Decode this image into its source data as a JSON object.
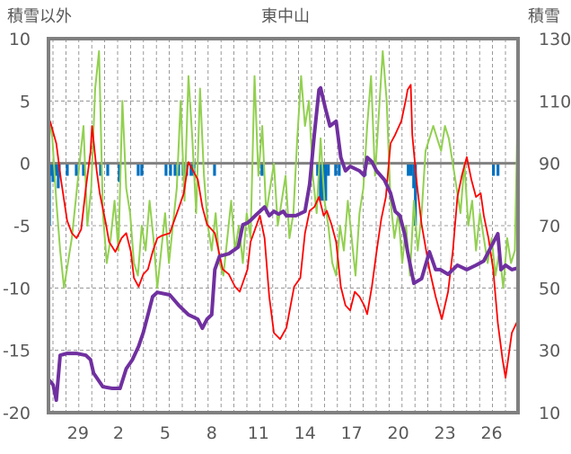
{
  "chart_data": {
    "type": "line",
    "title": "東中山",
    "ylabel_left": "積雪以外",
    "ylabel_right": "積雪",
    "ylim_left": [
      -20,
      10
    ],
    "ylim_right": [
      10,
      130
    ],
    "xlim": [
      0,
      30.2
    ],
    "left_ticks": [
      10,
      5,
      0,
      -5,
      -10,
      -15,
      -20
    ],
    "right_ticks": [
      130,
      110,
      90,
      70,
      50,
      30,
      10
    ],
    "x_ticks": [
      {
        "x": 1.9,
        "label": "29"
      },
      {
        "x": 4.5,
        "label": "2"
      },
      {
        "x": 7.5,
        "label": "5"
      },
      {
        "x": 10.5,
        "label": "8"
      },
      {
        "x": 13.5,
        "label": "11"
      },
      {
        "x": 16.5,
        "label": "14"
      },
      {
        "x": 19.5,
        "label": "17"
      },
      {
        "x": 22.5,
        "label": "20"
      },
      {
        "x": 25.5,
        "label": "23"
      },
      {
        "x": 28.5,
        "label": "26"
      }
    ],
    "grid": true,
    "colors": {
      "red": "#ff0000",
      "green": "#92d050",
      "purple": "#7030a0",
      "blue": "#0070c0",
      "frame": "#808080"
    },
    "series": [
      {
        "name": "red",
        "axis": "left",
        "x": [
          0.1,
          0.5,
          0.8,
          1.2,
          1.5,
          1.8,
          2.1,
          2.4,
          2.7,
          2.8,
          3.1,
          3.3,
          3.7,
          3.9,
          4.3,
          4.7,
          5.0,
          5.3,
          5.5,
          5.8,
          6.1,
          6.4,
          6.7,
          7.0,
          7.3,
          7.8,
          8.4,
          8.7,
          9.0,
          9.3,
          9.6,
          9.9,
          10.2,
          10.7,
          11.2,
          11.6,
          12.0,
          12.3,
          12.8,
          13.0,
          13.6,
          13.9,
          14.2,
          14.5,
          14.9,
          15.3,
          15.8,
          16.2,
          16.5,
          16.8,
          17.1,
          17.4,
          17.7,
          17.9,
          18.2,
          18.5,
          18.8,
          19.1,
          19.4,
          19.7,
          20.0,
          20.3,
          20.5,
          20.8,
          21.1,
          21.4,
          21.7,
          22.0,
          22.3,
          22.7,
          23.0,
          23.1,
          23.3,
          23.4,
          23.7,
          24.0,
          24.5,
          24.9,
          25.3,
          25.7,
          26.0,
          26.3,
          26.6,
          26.9,
          27.2,
          27.5,
          27.8,
          28.0,
          28.3,
          28.6,
          28.9,
          29.2,
          29.4,
          29.6,
          29.8,
          30.1,
          30.2
        ],
        "values": [
          3.4,
          1.6,
          -1.3,
          -4.6,
          -5.6,
          -6.0,
          -5.3,
          -2.0,
          0.9,
          3.0,
          -0.6,
          -2.4,
          -4.9,
          -6.3,
          -7.1,
          -6.0,
          -5.6,
          -7.1,
          -9.2,
          -9.9,
          -8.9,
          -8.5,
          -7.1,
          -6.0,
          -5.8,
          -5.6,
          -3.5,
          -2.4,
          0.1,
          -0.6,
          -1.3,
          -3.5,
          -4.9,
          -5.6,
          -8.5,
          -8.9,
          -9.9,
          -10.3,
          -8.5,
          -6.3,
          -4.2,
          -6.0,
          -10.7,
          -13.6,
          -14.1,
          -13.2,
          -9.9,
          -9.2,
          -5.6,
          -3.8,
          -3.5,
          -2.7,
          -4.2,
          -3.8,
          -4.9,
          -6.3,
          -9.9,
          -11.4,
          -11.8,
          -10.3,
          -10.7,
          -11.4,
          -12.1,
          -9.9,
          -7.1,
          -4.5,
          -2.7,
          1.6,
          2.3,
          3.4,
          5.2,
          5.9,
          6.3,
          2.3,
          -1.7,
          -4.9,
          -8.5,
          -10.7,
          -12.5,
          -10.3,
          -7.1,
          -2.7,
          -0.9,
          0.5,
          -1.3,
          -2.7,
          -2.4,
          -4.2,
          -6.0,
          -8.5,
          -12.8,
          -15.7,
          -17.2,
          -15.4,
          -13.6,
          -12.8,
          -12.7
        ]
      },
      {
        "name": "green",
        "axis": "left",
        "x_start": 0,
        "x_step": 0.25,
        "values": [
          4,
          2,
          -3,
          -7,
          -10,
          -8,
          -6,
          -3,
          0,
          3,
          -5,
          -2,
          6,
          9,
          -4,
          -8,
          -6,
          -3,
          -7,
          5,
          -2,
          -4,
          -8,
          -9,
          -5,
          -7,
          -3,
          -6,
          -10,
          -7,
          -4,
          -8,
          -5,
          -2,
          5,
          -3,
          7,
          2,
          -4,
          6,
          -1,
          -5,
          -7,
          -4,
          -8,
          -9,
          -6,
          -3,
          -7,
          -5,
          -8,
          -4,
          -6,
          7,
          -1,
          3,
          -4,
          -2,
          0,
          -5,
          -3,
          -1,
          -6,
          -4,
          2,
          7,
          3,
          5,
          -1,
          -4,
          2,
          -3,
          -5,
          -8,
          -9,
          -5,
          -7,
          -3,
          -6,
          -9,
          -4,
          -2,
          3,
          7,
          -1,
          4,
          9,
          5,
          -3,
          -6,
          -4,
          -8,
          -5,
          -9,
          -3,
          -7,
          -4,
          1,
          2,
          3,
          2,
          1,
          3,
          2,
          0,
          -2,
          -4,
          0,
          -5,
          -3,
          -7,
          -4,
          -6,
          -8,
          -6,
          -9,
          -7,
          -10,
          -6,
          -8,
          -7,
          6
        ]
      },
      {
        "name": "blue",
        "axis": "left",
        "type": "bar",
        "x": [
          0.06,
          0.17,
          0.29,
          0.46,
          0.63,
          0.69,
          1.21,
          1.79,
          2.25,
          3.35,
          3.81,
          4.56,
          5.77,
          6.0,
          7.56,
          7.85,
          8.14,
          8.37,
          8.66,
          8.89,
          9.17,
          9.35,
          10.68,
          13.73,
          17.31,
          17.49,
          17.66,
          17.83,
          18.0,
          18.47,
          18.7,
          20.37,
          23.14,
          23.31,
          23.49,
          23.6,
          28.62,
          28.91
        ],
        "values": [
          -5,
          -1,
          -1.5,
          -1,
          -2,
          -1,
          -1,
          -1,
          -1,
          -1,
          -1,
          -1.5,
          -1,
          -1,
          -1,
          -1,
          -1,
          -1,
          -1,
          -1,
          -1,
          -1,
          -1,
          -1,
          -1,
          -3,
          -3,
          -3,
          -1,
          -1,
          -1,
          -1,
          -1,
          -1,
          -2,
          -5,
          -1,
          -1
        ]
      },
      {
        "name": "purple",
        "axis": "right",
        "x": [
          0,
          0.3,
          0.5,
          0.75,
          1.2,
          1.8,
          2.4,
          2.7,
          2.9,
          3.5,
          4.1,
          4.6,
          5.0,
          5.4,
          5.8,
          6.1,
          6.4,
          6.7,
          7.0,
          7.8,
          8.4,
          9.0,
          9.6,
          9.9,
          10.2,
          10.5,
          10.7,
          11.0,
          11.6,
          12.2,
          12.5,
          12.8,
          13.0,
          13.3,
          13.6,
          13.9,
          14.2,
          14.5,
          14.8,
          15.1,
          15.3,
          15.9,
          16.5,
          16.8,
          17.1,
          17.4,
          17.5,
          17.8,
          18.1,
          18.5,
          18.8,
          19.1,
          19.4,
          20.0,
          20.3,
          20.5,
          20.8,
          21.1,
          21.6,
          22.0,
          22.3,
          22.6,
          22.9,
          23.1,
          23.5,
          24.0,
          24.5,
          24.9,
          25.2,
          25.7,
          26.3,
          26.9,
          27.5,
          28.0,
          28.6,
          28.9,
          29.1,
          29.4,
          29.8,
          30.2
        ],
        "values": [
          20.7,
          18.9,
          14.0,
          28.4,
          29.0,
          29.0,
          28.4,
          27.0,
          22.7,
          18.3,
          17.8,
          17.8,
          24.1,
          27.0,
          31.3,
          35.7,
          41.4,
          47.2,
          48.6,
          47.8,
          44.3,
          41.4,
          40.0,
          37.1,
          40.0,
          41.4,
          55.9,
          60.2,
          61.0,
          63.1,
          70.3,
          70.9,
          71.7,
          73.2,
          74.6,
          76.0,
          73.2,
          74.6,
          73.7,
          74.6,
          73.2,
          73.2,
          74.6,
          83.3,
          99.2,
          113.6,
          114.2,
          107.8,
          102.0,
          103.5,
          91.9,
          87.6,
          89.0,
          87.6,
          86.1,
          91.9,
          90.5,
          87.6,
          84.7,
          80.4,
          74.6,
          73.2,
          67.4,
          61.6,
          51.5,
          53.0,
          61.6,
          55.9,
          55.9,
          54.4,
          57.3,
          55.9,
          57.3,
          58.7,
          64.5,
          67.4,
          55.9,
          57.3,
          55.9,
          56.4
        ]
      }
    ]
  }
}
